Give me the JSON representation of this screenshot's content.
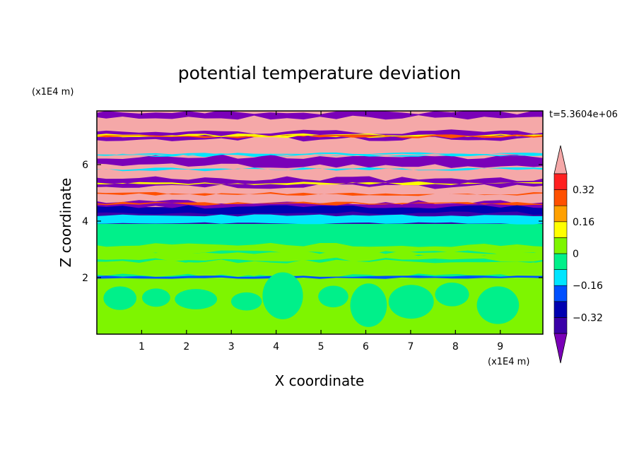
{
  "chart_data": {
    "type": "heatmap",
    "title": "potential temperature deviation",
    "xlabel": "X coordinate",
    "ylabel": "Z coordinate",
    "x_unit": "(x1E4 m)",
    "y_unit": "(x1E4 m)",
    "time_label": "t=5.3604e+06",
    "xlim": [
      0,
      9.95
    ],
    "ylim": [
      0,
      7.9
    ],
    "x_ticks": [
      1,
      2,
      3,
      4,
      5,
      6,
      7,
      8,
      9
    ],
    "y_ticks": [
      2,
      4,
      6
    ],
    "colorbar": {
      "levels": [
        -0.4,
        -0.32,
        -0.24,
        -0.16,
        -0.08,
        0,
        0.08,
        0.16,
        0.24,
        0.32,
        0.4
      ],
      "labels": [
        "0.32",
        "0.16",
        "0",
        "−0.16",
        "−0.32"
      ],
      "label_values": [
        0.32,
        0.16,
        0,
        -0.16,
        -0.32
      ],
      "colors": [
        "#7a00b8",
        "#3a00a8",
        "#0000b0",
        "#0050ff",
        "#00e5ff",
        "#00f08a",
        "#7ef500",
        "#ffff00",
        "#ffa000",
        "#ff5000",
        "#ff2020",
        "#f5a8a8"
      ],
      "extend": "both"
    },
    "layers": [
      {
        "z_range": [
          0.0,
          2.0
        ],
        "dominant": "#7ef500",
        "secondary": "#00f08a"
      },
      {
        "z_range": [
          2.0,
          3.9
        ],
        "dominant": "#00f08a",
        "secondary": "#7ef500"
      },
      {
        "z_range": [
          3.9,
          4.5
        ],
        "dominant": "#3a00a8",
        "secondary": "#00e5ff"
      },
      {
        "z_range": [
          4.5,
          7.9
        ],
        "dominant": "#f5a8a8",
        "secondary": "#7a00b8"
      }
    ]
  }
}
